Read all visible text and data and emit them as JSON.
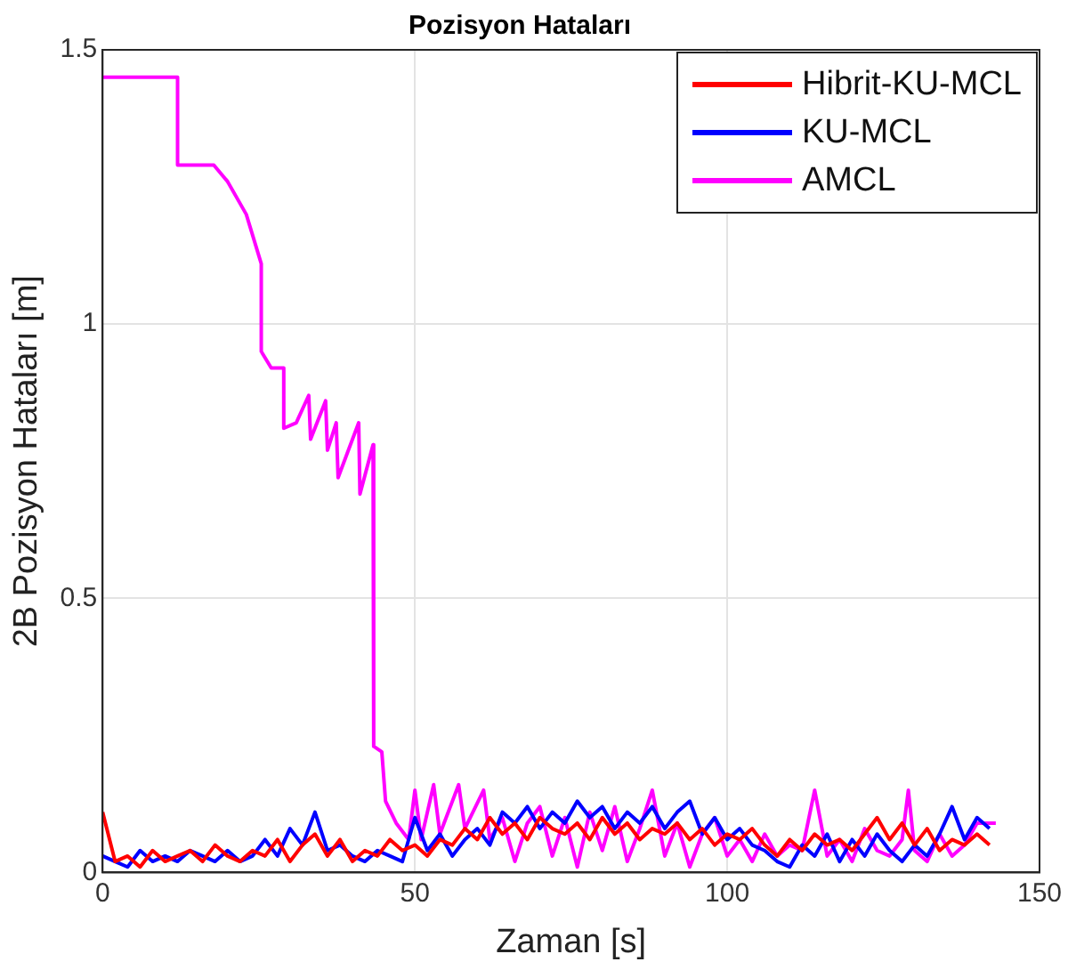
{
  "chart_data": {
    "type": "line",
    "title": "Pozisyon Hataları",
    "xlabel": "Zaman [s]",
    "ylabel": "2B Pozisyon Hataları [m]",
    "xlim": [
      0,
      150
    ],
    "xticks": [
      0,
      50,
      100,
      150
    ],
    "ylim": [
      0,
      1.5
    ],
    "yticks": [
      0,
      0.5,
      1,
      1.5
    ],
    "grid": true,
    "legend": "top right",
    "marker": "none",
    "line_style": "solid",
    "series": [
      {
        "name": "Hibrit-KU-MCL",
        "color": "#ff0000",
        "x": [
          0,
          2,
          4,
          6,
          8,
          10,
          12,
          14,
          16,
          18,
          20,
          22,
          24,
          26,
          28,
          30,
          32,
          34,
          36,
          38,
          40,
          42,
          44,
          46,
          48,
          50,
          52,
          54,
          56,
          58,
          60,
          62,
          64,
          66,
          68,
          70,
          72,
          74,
          76,
          78,
          80,
          82,
          84,
          86,
          88,
          90,
          92,
          94,
          96,
          98,
          100,
          102,
          104,
          106,
          108,
          110,
          112,
          114,
          116,
          118,
          120,
          122,
          124,
          126,
          128,
          130,
          132,
          134,
          136,
          138,
          140,
          142
        ],
        "values": [
          0.11,
          0.02,
          0.03,
          0.01,
          0.04,
          0.02,
          0.03,
          0.04,
          0.02,
          0.05,
          0.03,
          0.02,
          0.04,
          0.03,
          0.06,
          0.02,
          0.05,
          0.07,
          0.03,
          0.06,
          0.02,
          0.04,
          0.03,
          0.06,
          0.04,
          0.05,
          0.03,
          0.06,
          0.05,
          0.08,
          0.06,
          0.1,
          0.07,
          0.09,
          0.06,
          0.1,
          0.08,
          0.07,
          0.09,
          0.06,
          0.1,
          0.07,
          0.09,
          0.06,
          0.08,
          0.07,
          0.09,
          0.06,
          0.08,
          0.05,
          0.07,
          0.06,
          0.08,
          0.05,
          0.03,
          0.06,
          0.04,
          0.07,
          0.05,
          0.06,
          0.04,
          0.07,
          0.1,
          0.06,
          0.09,
          0.05,
          0.08,
          0.04,
          0.06,
          0.05,
          0.07,
          0.05
        ]
      },
      {
        "name": "KU-MCL",
        "color": "#0000ff",
        "x": [
          0,
          2,
          4,
          6,
          8,
          10,
          12,
          14,
          16,
          18,
          20,
          22,
          24,
          26,
          28,
          30,
          32,
          34,
          36,
          38,
          40,
          42,
          44,
          46,
          48,
          50,
          52,
          54,
          56,
          58,
          60,
          62,
          64,
          66,
          68,
          70,
          72,
          74,
          76,
          78,
          80,
          82,
          84,
          86,
          88,
          90,
          92,
          94,
          96,
          98,
          100,
          102,
          104,
          106,
          108,
          110,
          112,
          114,
          116,
          118,
          120,
          122,
          124,
          126,
          128,
          130,
          132,
          134,
          136,
          138,
          140,
          142
        ],
        "values": [
          0.03,
          0.02,
          0.01,
          0.04,
          0.02,
          0.03,
          0.02,
          0.04,
          0.03,
          0.02,
          0.04,
          0.02,
          0.03,
          0.06,
          0.03,
          0.08,
          0.05,
          0.11,
          0.04,
          0.05,
          0.03,
          0.02,
          0.04,
          0.03,
          0.02,
          0.1,
          0.04,
          0.07,
          0.03,
          0.06,
          0.08,
          0.05,
          0.11,
          0.09,
          0.12,
          0.08,
          0.11,
          0.09,
          0.13,
          0.1,
          0.12,
          0.08,
          0.11,
          0.09,
          0.12,
          0.08,
          0.11,
          0.13,
          0.07,
          0.1,
          0.06,
          0.08,
          0.05,
          0.04,
          0.02,
          0.01,
          0.05,
          0.03,
          0.07,
          0.02,
          0.06,
          0.03,
          0.07,
          0.04,
          0.02,
          0.05,
          0.03,
          0.07,
          0.12,
          0.06,
          0.1,
          0.08
        ]
      },
      {
        "name": "AMCL",
        "color": "#ff00ff",
        "x": [
          0,
          12,
          12,
          17.8,
          20,
          23,
          25.4,
          25.4,
          27,
          29,
          29,
          31,
          33,
          33.3,
          35.7,
          36,
          37.4,
          37.7,
          41,
          41.2,
          43.3,
          43.4,
          44.7,
          45.3,
          47,
          49,
          50,
          51,
          53,
          54,
          57,
          58,
          61,
          62,
          64,
          66,
          68,
          70,
          72,
          74,
          76,
          78,
          80,
          82,
          84,
          86,
          88,
          90,
          92,
          94,
          96,
          98,
          100,
          102,
          104,
          106,
          108,
          110,
          112,
          114,
          116,
          118,
          120,
          122,
          124,
          126,
          128,
          129,
          130,
          132,
          134,
          136,
          138,
          140,
          143
        ],
        "values": [
          1.45,
          1.45,
          1.29,
          1.29,
          1.26,
          1.2,
          1.11,
          0.95,
          0.92,
          0.92,
          0.81,
          0.82,
          0.87,
          0.79,
          0.86,
          0.77,
          0.82,
          0.72,
          0.82,
          0.69,
          0.78,
          0.23,
          0.22,
          0.13,
          0.09,
          0.06,
          0.15,
          0.06,
          0.16,
          0.07,
          0.16,
          0.08,
          0.15,
          0.06,
          0.1,
          0.02,
          0.09,
          0.12,
          0.03,
          0.1,
          0.01,
          0.11,
          0.04,
          0.12,
          0.02,
          0.08,
          0.15,
          0.03,
          0.09,
          0.01,
          0.07,
          0.1,
          0.03,
          0.06,
          0.02,
          0.07,
          0.03,
          0.05,
          0.04,
          0.15,
          0.03,
          0.06,
          0.02,
          0.08,
          0.04,
          0.03,
          0.06,
          0.15,
          0.04,
          0.02,
          0.07,
          0.03,
          0.05,
          0.09,
          0.09
        ]
      }
    ]
  }
}
